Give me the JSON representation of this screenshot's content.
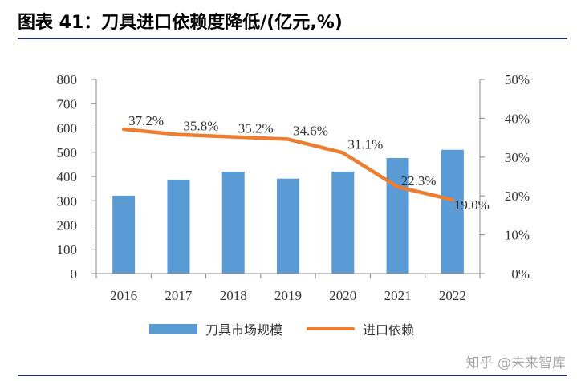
{
  "header": {
    "title": "图表 41：刀具进口依赖度降低/(亿元,%)"
  },
  "watermark": "知乎 @未来智库",
  "colors": {
    "bar": "#5b9bd5",
    "line": "#ed7d31",
    "rule": "#1f2d6e"
  },
  "chart_data": {
    "type": "bar",
    "categories": [
      "2016",
      "2017",
      "2018",
      "2019",
      "2020",
      "2021",
      "2022"
    ],
    "series": [
      {
        "name": "刀具市场规模",
        "type": "bar",
        "axis": "left",
        "values": [
          321,
          387,
          420,
          391,
          420,
          476,
          510
        ]
      },
      {
        "name": "进口依赖",
        "type": "line",
        "axis": "right",
        "values": [
          37.2,
          35.8,
          35.2,
          34.6,
          31.1,
          22.3,
          19.0
        ],
        "labels": [
          "37.2%",
          "35.8%",
          "35.2%",
          "34.6%",
          "31.1%",
          "22.3%",
          "19.0%"
        ]
      }
    ],
    "ylim_left": [
      0,
      800
    ],
    "yticks_left": [
      "0",
      "100",
      "200",
      "300",
      "400",
      "500",
      "600",
      "700",
      "800"
    ],
    "ylim_right": [
      0,
      50
    ],
    "yticks_right": [
      "0%",
      "10%",
      "20%",
      "30%",
      "40%",
      "50%"
    ],
    "grid": false,
    "legend": "bottom"
  }
}
